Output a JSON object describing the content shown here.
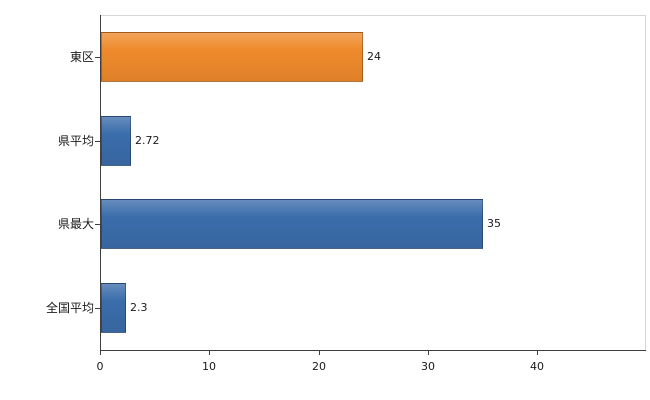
{
  "chart_data": {
    "type": "bar",
    "orientation": "horizontal",
    "title": "",
    "xlabel": "",
    "ylabel": "",
    "categories": [
      "東区",
      "県平均",
      "県最大",
      "全国平均"
    ],
    "values": [
      24,
      2.72,
      35,
      2.3
    ],
    "value_labels": [
      "24",
      "2.72",
      "35",
      "2.3"
    ],
    "colors": [
      "#EF8A2C",
      "#3B6DAB",
      "#3B6DAB",
      "#3B6DAB"
    ],
    "x_ticks": [
      0,
      10,
      20,
      30,
      40
    ],
    "xlim": [
      0,
      50
    ],
    "grid": false,
    "legend": null,
    "value_label_position": "outside-end"
  },
  "colors": {
    "orange_bar": "#EF8A2C",
    "blue_bar": "#3B6DAB",
    "axis_line": "#3f3f3f",
    "frame_line": "#d6d6d6",
    "text": "#1a1a1a",
    "background": "#ffffff"
  }
}
